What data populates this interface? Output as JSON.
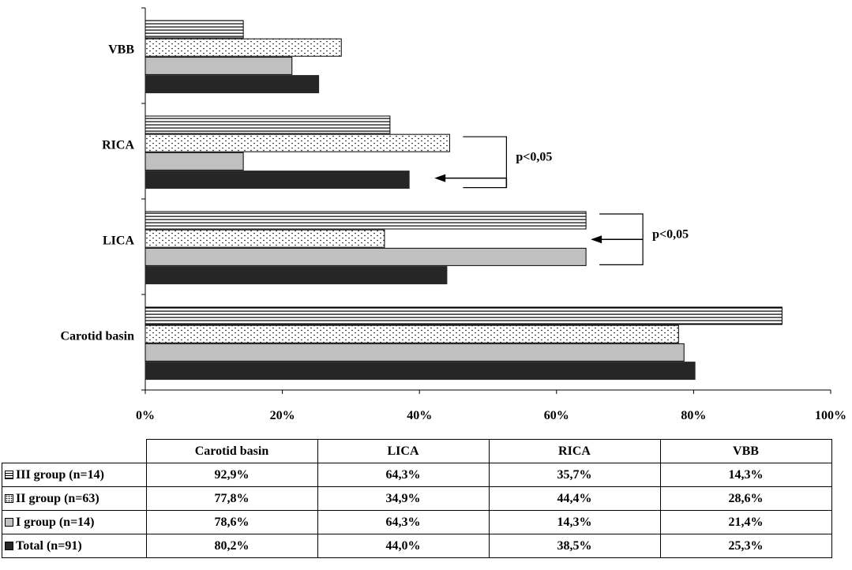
{
  "chart_data": {
    "type": "bar",
    "orientation": "horizontal",
    "categories": [
      "VBB",
      "RICA",
      "LICA",
      "Carotid basin"
    ],
    "xlim": [
      0,
      100
    ],
    "x_ticks": [
      "0%",
      "20%",
      "40%",
      "60%",
      "80%",
      "100%"
    ],
    "grid": false,
    "legend": "data table below chart",
    "series": [
      {
        "name": "III group (n=14)",
        "pattern": "horizontal-lines",
        "values": [
          14.3,
          35.7,
          64.3,
          92.9
        ]
      },
      {
        "name": "II group (n=63)",
        "pattern": "dotted",
        "values": [
          28.6,
          44.4,
          34.9,
          77.8
        ]
      },
      {
        "name": "I group (n=14)",
        "pattern": "gray",
        "values": [
          21.4,
          14.3,
          64.3,
          78.6
        ]
      },
      {
        "name": "Total (n=91)",
        "pattern": "black",
        "values": [
          25.3,
          38.5,
          44.0,
          80.2
        ]
      }
    ],
    "annotations": [
      {
        "text": "p<0,05",
        "category": "RICA",
        "compares": [
          "II group (n=63)",
          "Total (n=91)"
        ]
      },
      {
        "text": "p<0,05",
        "category": "LICA",
        "compares": [
          "III group (n=14)",
          "I group (n=14)"
        ]
      }
    ],
    "colors": {
      "gray": "#c0c0c0",
      "black": "#262626"
    }
  },
  "table": {
    "columns": [
      "Carotid basin",
      "LICA",
      "RICA",
      "VBB"
    ],
    "rows": [
      {
        "label": "III group (n=14)",
        "values": [
          "92,9%",
          "64,3%",
          "35,7%",
          "14,3%"
        ]
      },
      {
        "label": "II group (n=63)",
        "values": [
          "77,8%",
          "34,9%",
          "44,4%",
          "28,6%"
        ]
      },
      {
        "label": "I group (n=14)",
        "values": [
          "78,6%",
          "64,3%",
          "14,3%",
          "21,4%"
        ]
      },
      {
        "label": "Total (n=91)",
        "values": [
          "80,2%",
          "44,0%",
          "38,5%",
          "25,3%"
        ]
      }
    ]
  }
}
